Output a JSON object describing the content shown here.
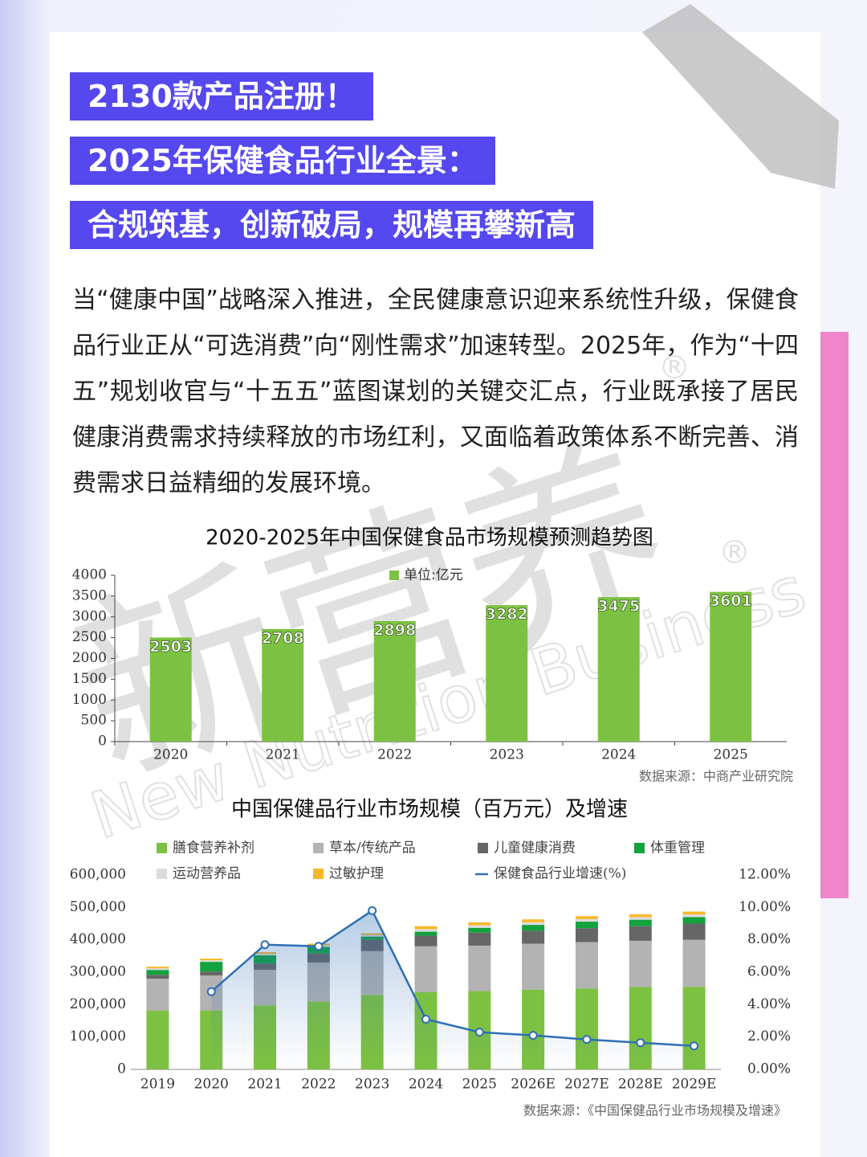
{
  "header": {
    "lines": [
      "2130款产品注册！",
      "2025年保健食品行业全景：",
      "合规筑基，创新破局，规模再攀新高"
    ]
  },
  "body": "当“健康中国”战略深入推进，全民健康意识迎来系统性升级，保健食品行业正从“可选消费”向“刚性需求”加速转型。2025年，作为“十四五”规划收官与“十五五”蓝图谋划的关键交汇点，行业既承接了居民健康消费需求持续释放的市场红利，又面临着政策体系不断完善、消费需求日益精细的发展环境。",
  "watermark": {
    "brand": "新营养",
    "english": "New Nutrition Business",
    "mark": "®"
  },
  "chart_data": [
    {
      "type": "bar",
      "title": "2020-2025年中国保健食品市场规模预测趋势图",
      "categories": [
        "2020",
        "2021",
        "2022",
        "2023",
        "2024",
        "2025"
      ],
      "series": [
        {
          "name": "单位:亿元",
          "color": "#7dc142",
          "values": [
            2503,
            2708,
            2898,
            3282,
            3475,
            3601
          ]
        }
      ],
      "ylim": [
        0,
        4000
      ],
      "yticks": [
        0,
        500,
        1000,
        1500,
        2000,
        2500,
        3000,
        3500,
        4000
      ],
      "source": "数据来源：中商产业研究院"
    },
    {
      "type": "stacked-bar-line",
      "title": "中国保健品行业市场规模（百万元）及增速",
      "categories": [
        "2019",
        "2020",
        "2021",
        "2022",
        "2023",
        "2024",
        "2025",
        "2026E",
        "2027E",
        "2028E",
        "2029E"
      ],
      "series": [
        {
          "name": "膳食营养补剂",
          "color": "#7dc142",
          "values": [
            182000,
            182000,
            198000,
            210000,
            230000,
            238000,
            242000,
            246000,
            250000,
            254000,
            255000
          ]
        },
        {
          "name": "草本/传统产品",
          "color": "#b3b3b3",
          "values": [
            98000,
            108000,
            109000,
            120000,
            135000,
            142000,
            140000,
            142000,
            143000,
            143000,
            145000
          ]
        },
        {
          "name": "儿童健康消费",
          "color": "#666666",
          "values": [
            12000,
            12000,
            20000,
            28000,
            35000,
            33000,
            40000,
            40000,
            43000,
            45000,
            50000
          ]
        },
        {
          "name": "体重管理",
          "color": "#12a23e",
          "values": [
            15000,
            30000,
            25000,
            20000,
            10000,
            12000,
            15000,
            18000,
            20000,
            20000,
            20000
          ]
        },
        {
          "name": "运动营养品",
          "color": "#dcdcdc",
          "values": [
            5000,
            5000,
            5000,
            5000,
            5000,
            8000,
            8000,
            8000,
            8000,
            8000,
            8000
          ]
        },
        {
          "name": "过敏护理",
          "color": "#f6b92b",
          "values": [
            5000,
            5000,
            5000,
            5000,
            5000,
            9000,
            9000,
            9000,
            9000,
            9000,
            9000
          ]
        },
        {
          "name": "保健食品行业增速(%)",
          "color": "#2e6fb5",
          "axis": "y2",
          "values": [
            null,
            4.8,
            7.7,
            7.6,
            9.8,
            3.1,
            2.3,
            2.1,
            1.85,
            1.65,
            1.45
          ]
        }
      ],
      "ylim": [
        0,
        600000
      ],
      "yticks": [
        0,
        {
          "value": 100000,
          "label": "100,000"
        },
        {
          "value": 200000,
          "label": "200,000"
        },
        {
          "value": 300000,
          "label": "300,000"
        },
        {
          "value": 400000,
          "label": "400,000"
        },
        {
          "value": 500000,
          "label": "500,000"
        },
        {
          "value": 600000,
          "label": "600,000"
        }
      ],
      "y2lim": [
        0,
        12
      ],
      "y2ticks": [
        {
          "value": 0,
          "label": "0.00%"
        },
        {
          "value": 2,
          "label": "2.00%"
        },
        {
          "value": 4,
          "label": "4.00%"
        },
        {
          "value": 6,
          "label": "6.00%"
        },
        {
          "value": 8,
          "label": "8.00%"
        },
        {
          "value": 10,
          "label": "10.00%"
        },
        {
          "value": 12,
          "label": "12.00%"
        }
      ],
      "source": "数据来源：《中国保健品行业市场规模及增速》"
    }
  ]
}
